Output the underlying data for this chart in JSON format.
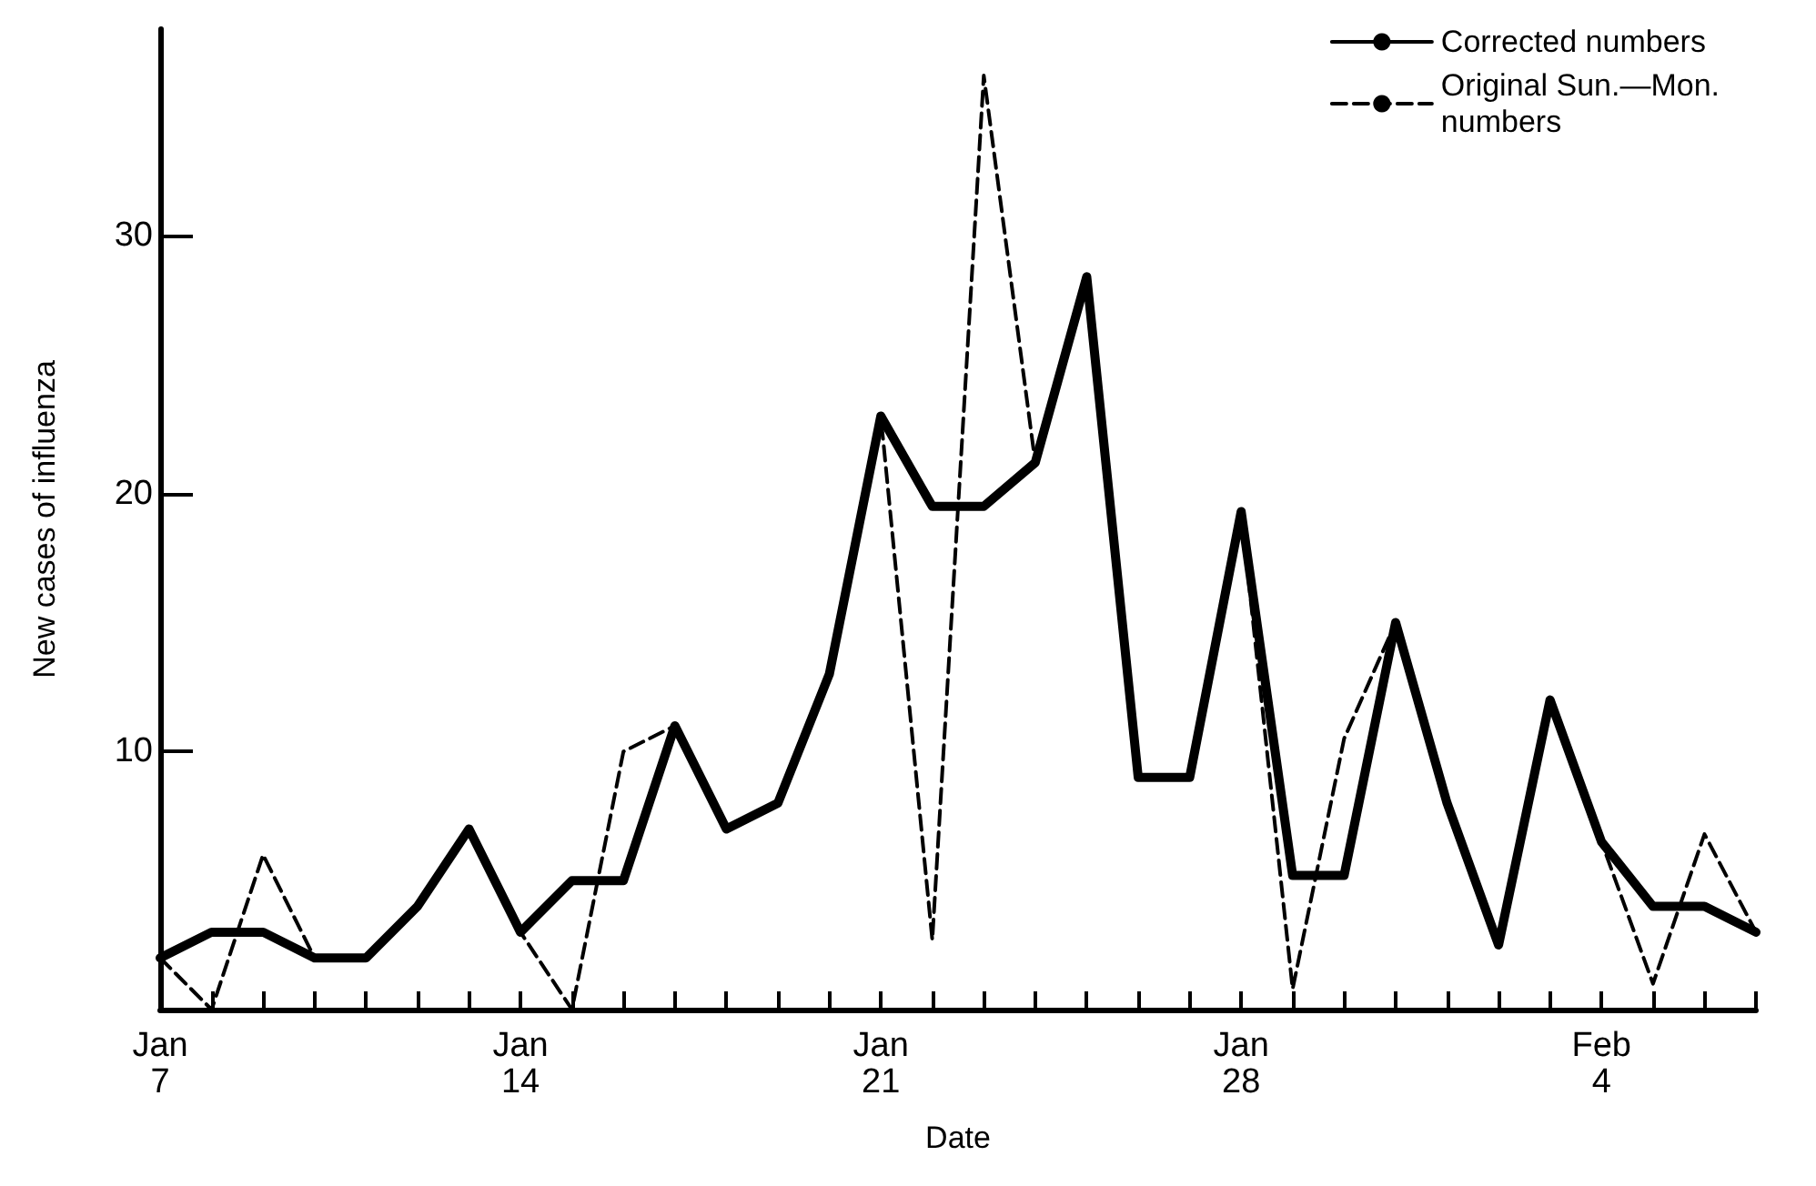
{
  "chart_data": {
    "type": "line",
    "xlabel": "Date",
    "ylabel": "New cases of influenza",
    "categories": [
      "Jan\n7",
      null,
      null,
      null,
      null,
      null,
      null,
      "Jan\n14",
      null,
      null,
      null,
      null,
      null,
      null,
      "Jan\n21",
      null,
      null,
      null,
      null,
      null,
      null,
      "Jan\n28",
      null,
      null,
      null,
      null,
      null,
      null,
      "Feb\n4",
      null,
      null,
      null
    ],
    "series": [
      {
        "name": "Corrected numbers",
        "color": "#000000",
        "line_style": "solid",
        "values": [
          2,
          3,
          3,
          2,
          2,
          4,
          7,
          3,
          5,
          5,
          11,
          7,
          8,
          13,
          23,
          19.5,
          19.5,
          21.2,
          28.4,
          9,
          9,
          19.3,
          5.2,
          5.2,
          15,
          8,
          2.5,
          12,
          6.5,
          4,
          4,
          3
        ]
      },
      {
        "name": "Original Sun.—Mon.\nnumbers",
        "color": "#000000",
        "line_style": "dashed",
        "values": [
          2,
          0,
          6,
          2,
          2,
          4,
          7,
          3,
          0,
          10,
          11,
          7,
          8,
          13,
          23,
          2.7,
          36.2,
          21.2,
          28.4,
          9,
          9,
          19.3,
          0.8,
          10.5,
          15,
          8,
          2.5,
          12,
          6.5,
          1,
          6.8,
          3
        ]
      }
    ],
    "ylim": [
      0,
      38
    ],
    "yticks": [
      10,
      20,
      30
    ],
    "grid": false,
    "legend": "top right",
    "marker": "none"
  }
}
